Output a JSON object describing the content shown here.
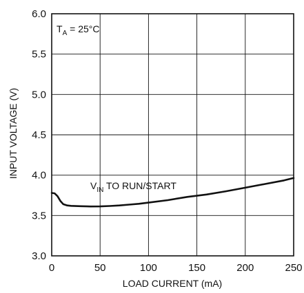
{
  "chart_data": {
    "type": "line",
    "title_fragment": "",
    "xlabel": "LOAD CURRENT (mA)",
    "ylabel": "INPUT VOLTAGE (V)",
    "xlim": [
      0,
      250
    ],
    "ylim": [
      3.0,
      6.0
    ],
    "x_ticks": [
      0,
      50,
      100,
      150,
      200,
      250
    ],
    "x_tick_labels": [
      "0",
      "50",
      "100",
      "150",
      "200",
      "250"
    ],
    "y_ticks": [
      3.0,
      3.5,
      4.0,
      4.5,
      5.0,
      5.5,
      6.0
    ],
    "y_tick_labels": [
      "3.0",
      "3.5",
      "4.0",
      "4.5",
      "5.0",
      "5.5",
      "6.0"
    ],
    "grid": true,
    "condition": {
      "main": "T",
      "sub": "A",
      "rest": " = 25°C"
    },
    "series": [
      {
        "label_main": "V",
        "label_sub": "IN",
        "label_rest": " TO RUN/START",
        "color": "#111111",
        "x": [
          0,
          3,
          6,
          9,
          12,
          16,
          20,
          30,
          40,
          50,
          60,
          70,
          80,
          90,
          100,
          120,
          140,
          160,
          180,
          200,
          220,
          240,
          250
        ],
        "y": [
          3.78,
          3.775,
          3.74,
          3.68,
          3.64,
          3.625,
          3.62,
          3.615,
          3.612,
          3.613,
          3.618,
          3.625,
          3.635,
          3.645,
          3.66,
          3.69,
          3.73,
          3.76,
          3.8,
          3.845,
          3.89,
          3.935,
          3.965
        ]
      }
    ]
  }
}
